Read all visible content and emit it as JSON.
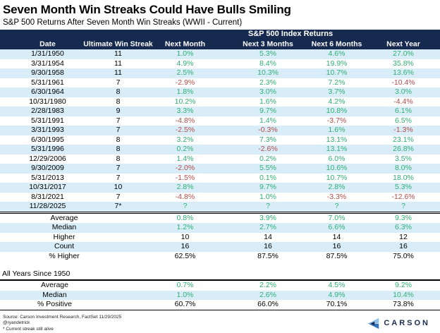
{
  "header": {
    "title": "Seven Month Win Streaks Could Have Bulls Smiling",
    "subtitle": "S&P 500 Returns After Seven Month Win Streaks (WWII - Current)"
  },
  "chart_data": {
    "type": "table",
    "title": "Seven Month Win Streaks Could Have Bulls Smiling",
    "subtitle": "S&P 500 Returns After Seven Month Win Streaks (WWII - Current)",
    "group_header": "S&P 500 Index Returns",
    "columns": [
      "Date",
      "Ultimate Win Streak",
      "Next Month",
      "Next 3 Months",
      "Next 6 Months",
      "Next Year"
    ],
    "rows": [
      {
        "date": "1/31/1950",
        "streak": "11",
        "returns": [
          {
            "v": "1.0%",
            "c": "pos"
          },
          {
            "v": "5.3%",
            "c": "pos"
          },
          {
            "v": "4.6%",
            "c": "pos"
          },
          {
            "v": "27.0%",
            "c": "pos"
          }
        ]
      },
      {
        "date": "3/31/1954",
        "streak": "11",
        "returns": [
          {
            "v": "4.9%",
            "c": "pos"
          },
          {
            "v": "8.4%",
            "c": "pos"
          },
          {
            "v": "19.9%",
            "c": "pos"
          },
          {
            "v": "35.8%",
            "c": "pos"
          }
        ]
      },
      {
        "date": "9/30/1958",
        "streak": "11",
        "returns": [
          {
            "v": "2.5%",
            "c": "pos"
          },
          {
            "v": "10.3%",
            "c": "pos"
          },
          {
            "v": "10.7%",
            "c": "pos"
          },
          {
            "v": "13.6%",
            "c": "pos"
          }
        ]
      },
      {
        "date": "5/31/1961",
        "streak": "7",
        "returns": [
          {
            "v": "-2.9%",
            "c": "neg"
          },
          {
            "v": "2.3%",
            "c": "pos"
          },
          {
            "v": "7.2%",
            "c": "pos"
          },
          {
            "v": "-10.4%",
            "c": "neg"
          }
        ]
      },
      {
        "date": "6/30/1964",
        "streak": "8",
        "returns": [
          {
            "v": "1.8%",
            "c": "pos"
          },
          {
            "v": "3.0%",
            "c": "pos"
          },
          {
            "v": "3.7%",
            "c": "pos"
          },
          {
            "v": "3.0%",
            "c": "pos"
          }
        ]
      },
      {
        "date": "10/31/1980",
        "streak": "8",
        "returns": [
          {
            "v": "10.2%",
            "c": "pos"
          },
          {
            "v": "1.6%",
            "c": "pos"
          },
          {
            "v": "4.2%",
            "c": "pos"
          },
          {
            "v": "-4.4%",
            "c": "neg"
          }
        ]
      },
      {
        "date": "2/28/1983",
        "streak": "9",
        "returns": [
          {
            "v": "3.3%",
            "c": "pos"
          },
          {
            "v": "9.7%",
            "c": "pos"
          },
          {
            "v": "10.8%",
            "c": "pos"
          },
          {
            "v": "6.1%",
            "c": "pos"
          }
        ]
      },
      {
        "date": "5/31/1991",
        "streak": "7",
        "returns": [
          {
            "v": "-4.8%",
            "c": "neg"
          },
          {
            "v": "1.4%",
            "c": "pos"
          },
          {
            "v": "-3.7%",
            "c": "neg"
          },
          {
            "v": "6.5%",
            "c": "pos"
          }
        ]
      },
      {
        "date": "3/31/1993",
        "streak": "7",
        "returns": [
          {
            "v": "-2.5%",
            "c": "neg"
          },
          {
            "v": "-0.3%",
            "c": "neg"
          },
          {
            "v": "1.6%",
            "c": "pos"
          },
          {
            "v": "-1.3%",
            "c": "neg"
          }
        ]
      },
      {
        "date": "6/30/1995",
        "streak": "8",
        "returns": [
          {
            "v": "3.2%",
            "c": "pos"
          },
          {
            "v": "7.3%",
            "c": "pos"
          },
          {
            "v": "13.1%",
            "c": "pos"
          },
          {
            "v": "23.1%",
            "c": "pos"
          }
        ]
      },
      {
        "date": "5/31/1996",
        "streak": "8",
        "returns": [
          {
            "v": "0.2%",
            "c": "pos"
          },
          {
            "v": "-2.6%",
            "c": "neg"
          },
          {
            "v": "13.1%",
            "c": "pos"
          },
          {
            "v": "26.8%",
            "c": "pos"
          }
        ]
      },
      {
        "date": "12/29/2006",
        "streak": "8",
        "returns": [
          {
            "v": "1.4%",
            "c": "pos"
          },
          {
            "v": "0.2%",
            "c": "pos"
          },
          {
            "v": "6.0%",
            "c": "pos"
          },
          {
            "v": "3.5%",
            "c": "pos"
          }
        ]
      },
      {
        "date": "9/30/2009",
        "streak": "7",
        "returns": [
          {
            "v": "-2.0%",
            "c": "neg"
          },
          {
            "v": "5.5%",
            "c": "pos"
          },
          {
            "v": "10.6%",
            "c": "pos"
          },
          {
            "v": "8.0%",
            "c": "pos"
          }
        ]
      },
      {
        "date": "5/31/2013",
        "streak": "7",
        "returns": [
          {
            "v": "-1.5%",
            "c": "neg"
          },
          {
            "v": "0.1%",
            "c": "pos"
          },
          {
            "v": "10.7%",
            "c": "pos"
          },
          {
            "v": "18.0%",
            "c": "pos"
          }
        ]
      },
      {
        "date": "10/31/2017",
        "streak": "10",
        "returns": [
          {
            "v": "2.8%",
            "c": "pos"
          },
          {
            "v": "9.7%",
            "c": "pos"
          },
          {
            "v": "2.8%",
            "c": "pos"
          },
          {
            "v": "5.3%",
            "c": "pos"
          }
        ]
      },
      {
        "date": "8/31/2021",
        "streak": "7",
        "returns": [
          {
            "v": "-4.8%",
            "c": "neg"
          },
          {
            "v": "1.0%",
            "c": "pos"
          },
          {
            "v": "-3.3%",
            "c": "neg"
          },
          {
            "v": "-12.6%",
            "c": "neg"
          }
        ]
      },
      {
        "date": "11/28/2025",
        "streak": "7*",
        "returns": [
          {
            "v": "?",
            "c": "pos"
          },
          {
            "v": "?",
            "c": "pos"
          },
          {
            "v": "?",
            "c": "pos"
          },
          {
            "v": "?",
            "c": "pos"
          }
        ]
      }
    ],
    "summary": [
      {
        "label": "Average",
        "cells": [
          {
            "v": "0.8%",
            "c": "pos"
          },
          {
            "v": "3.9%",
            "c": "pos"
          },
          {
            "v": "7.0%",
            "c": "pos"
          },
          {
            "v": "9.3%",
            "c": "pos"
          }
        ]
      },
      {
        "label": "Median",
        "cells": [
          {
            "v": "1.2%",
            "c": "pos"
          },
          {
            "v": "2.7%",
            "c": "pos"
          },
          {
            "v": "6.6%",
            "c": "pos"
          },
          {
            "v": "6.3%",
            "c": "pos"
          }
        ]
      },
      {
        "label": "Higher",
        "cells": [
          {
            "v": "10",
            "c": "blk"
          },
          {
            "v": "14",
            "c": "blk"
          },
          {
            "v": "14",
            "c": "blk"
          },
          {
            "v": "12",
            "c": "blk"
          }
        ]
      },
      {
        "label": "Count",
        "cells": [
          {
            "v": "16",
            "c": "blk"
          },
          {
            "v": "16",
            "c": "blk"
          },
          {
            "v": "16",
            "c": "blk"
          },
          {
            "v": "16",
            "c": "blk"
          }
        ]
      },
      {
        "label": "% Higher",
        "cells": [
          {
            "v": "62.5%",
            "c": "blk"
          },
          {
            "v": "87.5%",
            "c": "blk"
          },
          {
            "v": "87.5%",
            "c": "blk"
          },
          {
            "v": "75.0%",
            "c": "blk"
          }
        ]
      }
    ],
    "all_years_label": "All Years Since 1950",
    "all_years": [
      {
        "label": "Average",
        "cells": [
          {
            "v": "0.7%",
            "c": "pos"
          },
          {
            "v": "2.2%",
            "c": "pos"
          },
          {
            "v": "4.5%",
            "c": "pos"
          },
          {
            "v": "9.2%",
            "c": "pos"
          }
        ]
      },
      {
        "label": "Median",
        "cells": [
          {
            "v": "1.0%",
            "c": "pos"
          },
          {
            "v": "2.6%",
            "c": "pos"
          },
          {
            "v": "4.9%",
            "c": "pos"
          },
          {
            "v": "10.4%",
            "c": "pos"
          }
        ]
      },
      {
        "label": "% Positive",
        "cells": [
          {
            "v": "60.7%",
            "c": "blk"
          },
          {
            "v": "66.0%",
            "c": "blk"
          },
          {
            "v": "70.1%",
            "c": "blk"
          },
          {
            "v": "73.8%",
            "c": "blk"
          }
        ]
      }
    ]
  },
  "footer": {
    "source": "Source: Carson Investment Research, FactSet 11/29/2025",
    "handle": "@ryandetrick",
    "note": "* Current streak still alive",
    "logo_text": "CARSON"
  },
  "colors": {
    "positive": "#2FAF74",
    "negative": "#B44C48",
    "header_bg": "#16294E",
    "row_stripe": "#D9EDF8",
    "logo_navy": "#1B2B4D",
    "logo_light_blue": "#8FC2E9",
    "logo_mid_blue": "#2F74C0"
  }
}
